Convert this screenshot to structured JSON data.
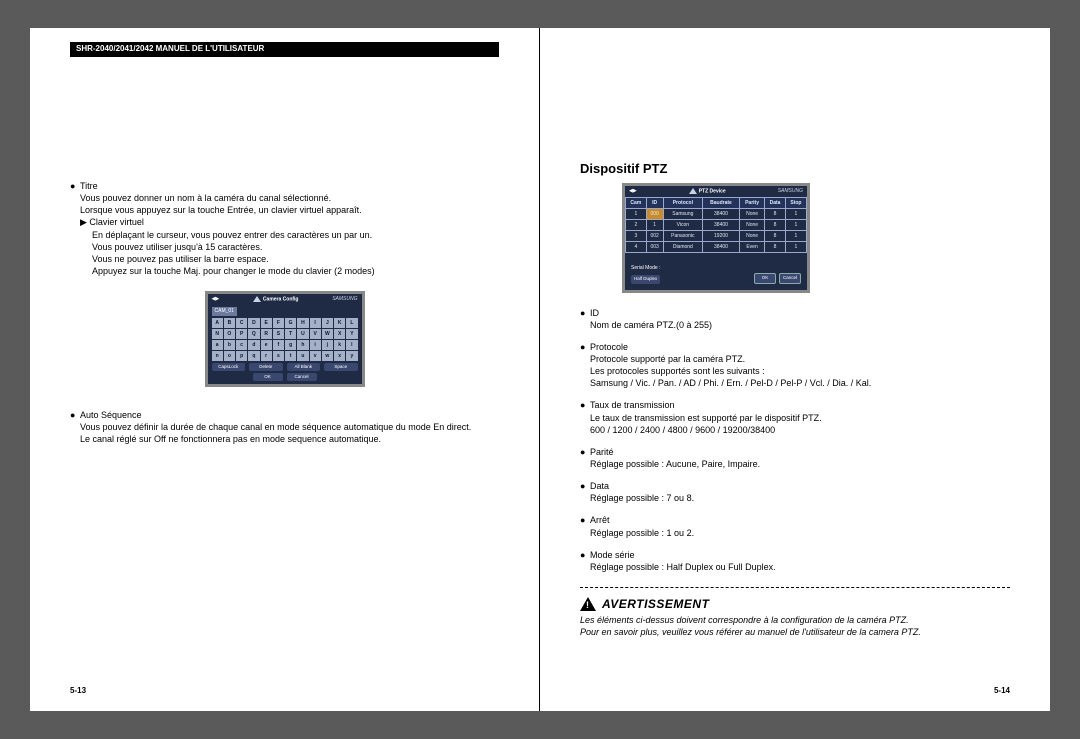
{
  "header": "SHR-2040/2041/2042 MANUEL DE L'UTILISATEUR",
  "left": {
    "titre_label": "Titre",
    "titre_l1": "Vous pouvez donner un nom à la caméra du canal sélectionné.",
    "titre_l2": "Lorsque vous appuyez sur la touche Entrée, un clavier virtuel apparaît.",
    "cv_label": "▶ Clavier virtuel",
    "cv_l1": "En déplaçant le curseur, vous pouvez entrer des caractères un par un.",
    "cv_l2": "Vous pouvez utiliser jusqu'à 15 caractères.",
    "cv_l3": "Vous ne pouvez pas utiliser la barre espace.",
    "cv_l4": "Appuyez sur la touche Maj. pour changer le mode du clavier (2 modes)",
    "auto_label": "Auto Séquence",
    "auto_l1": "Vous pouvez définir la durée de chaque canal en mode séquence automatique du mode En direct.",
    "auto_l2": "Le canal réglé sur Off ne fonctionnera pas en mode sequence automatique.",
    "page_num": "5-13",
    "shot": {
      "title": "Camera Config",
      "brand": "SAMSUNG",
      "field": "CAM_01",
      "rows": [
        [
          "A",
          "B",
          "C",
          "D",
          "E",
          "F",
          "G",
          "H",
          "I",
          "J",
          "K",
          "L"
        ],
        [
          "N",
          "O",
          "P",
          "Q",
          "R",
          "S",
          "T",
          "U",
          "V",
          "W",
          "X",
          "Y"
        ],
        [
          "a",
          "b",
          "c",
          "d",
          "e",
          "f",
          "g",
          "h",
          "i",
          "j",
          "k",
          "l"
        ],
        [
          "n",
          "o",
          "p",
          "q",
          "r",
          "s",
          "t",
          "u",
          "v",
          "w",
          "x",
          "y"
        ]
      ],
      "btns1": [
        "CapsLock",
        "Delete",
        "All Blank",
        "Space"
      ],
      "ok": "OK",
      "cancel": "Cancel"
    }
  },
  "right": {
    "heading": "Dispositif PTZ",
    "shot": {
      "title": "PTZ Device",
      "brand": "SAMSUNG",
      "cols": [
        "Cam",
        "ID",
        "Protocol",
        "Baudrate",
        "Parity",
        "Data",
        "Stop"
      ],
      "rows": [
        [
          "1",
          "000",
          "Samsung",
          "38400",
          "None",
          "8",
          "1"
        ],
        [
          "2",
          "1",
          "Vicon",
          "38400",
          "None",
          "8",
          "1"
        ],
        [
          "3",
          "002",
          "Panasonic",
          "19200",
          "None",
          "8",
          "1"
        ],
        [
          "4",
          "003",
          "Diamond",
          "38400",
          "Even",
          "8",
          "1"
        ]
      ],
      "serial_label": "Serial Mode :",
      "half": "Half Duplex",
      "ok": "OK",
      "cancel": "Cancel"
    },
    "id_label": "ID",
    "id_l1": "Nom de caméra PTZ.(0 à 255)",
    "proto_label": "Protocole",
    "proto_l1": "Protocole supporté par la caméra PTZ.",
    "proto_l2": "Les protocoles supportés sont les suivants :",
    "proto_l3": "Samsung / Vic. / Pan. / AD / Phi. / Ern. / Pel-D / Pel-P / Vcl. / Dia. / Kal.",
    "baud_label": "Taux de transmission",
    "baud_l1": "Le taux de transmission est supporté par le dispositif PTZ.",
    "baud_l2": "600 / 1200 / 2400 / 4800 / 9600 / 19200/38400",
    "parite_label": "Parité",
    "parite_l1": "Réglage possible : Aucune, Paire, Impaire.",
    "data_label": "Data",
    "data_l1": "Réglage possible : 7 ou 8.",
    "arret_label": "Arrêt",
    "arret_l1": "Réglage possible : 1 ou 2.",
    "mode_label": "Mode série",
    "mode_l1": "Réglage possible : Half Duplex ou Full Duplex.",
    "warn_word": "AVERTISSEMENT",
    "warn_l1": "Les éléments ci-dessus doivent correspondre à la configuration de la caméra PTZ.",
    "warn_l2": "Pour en savoir plus, veuillez vous référer au manuel de l'utilisateur de la camera PTZ.",
    "page_num": "5-14"
  }
}
